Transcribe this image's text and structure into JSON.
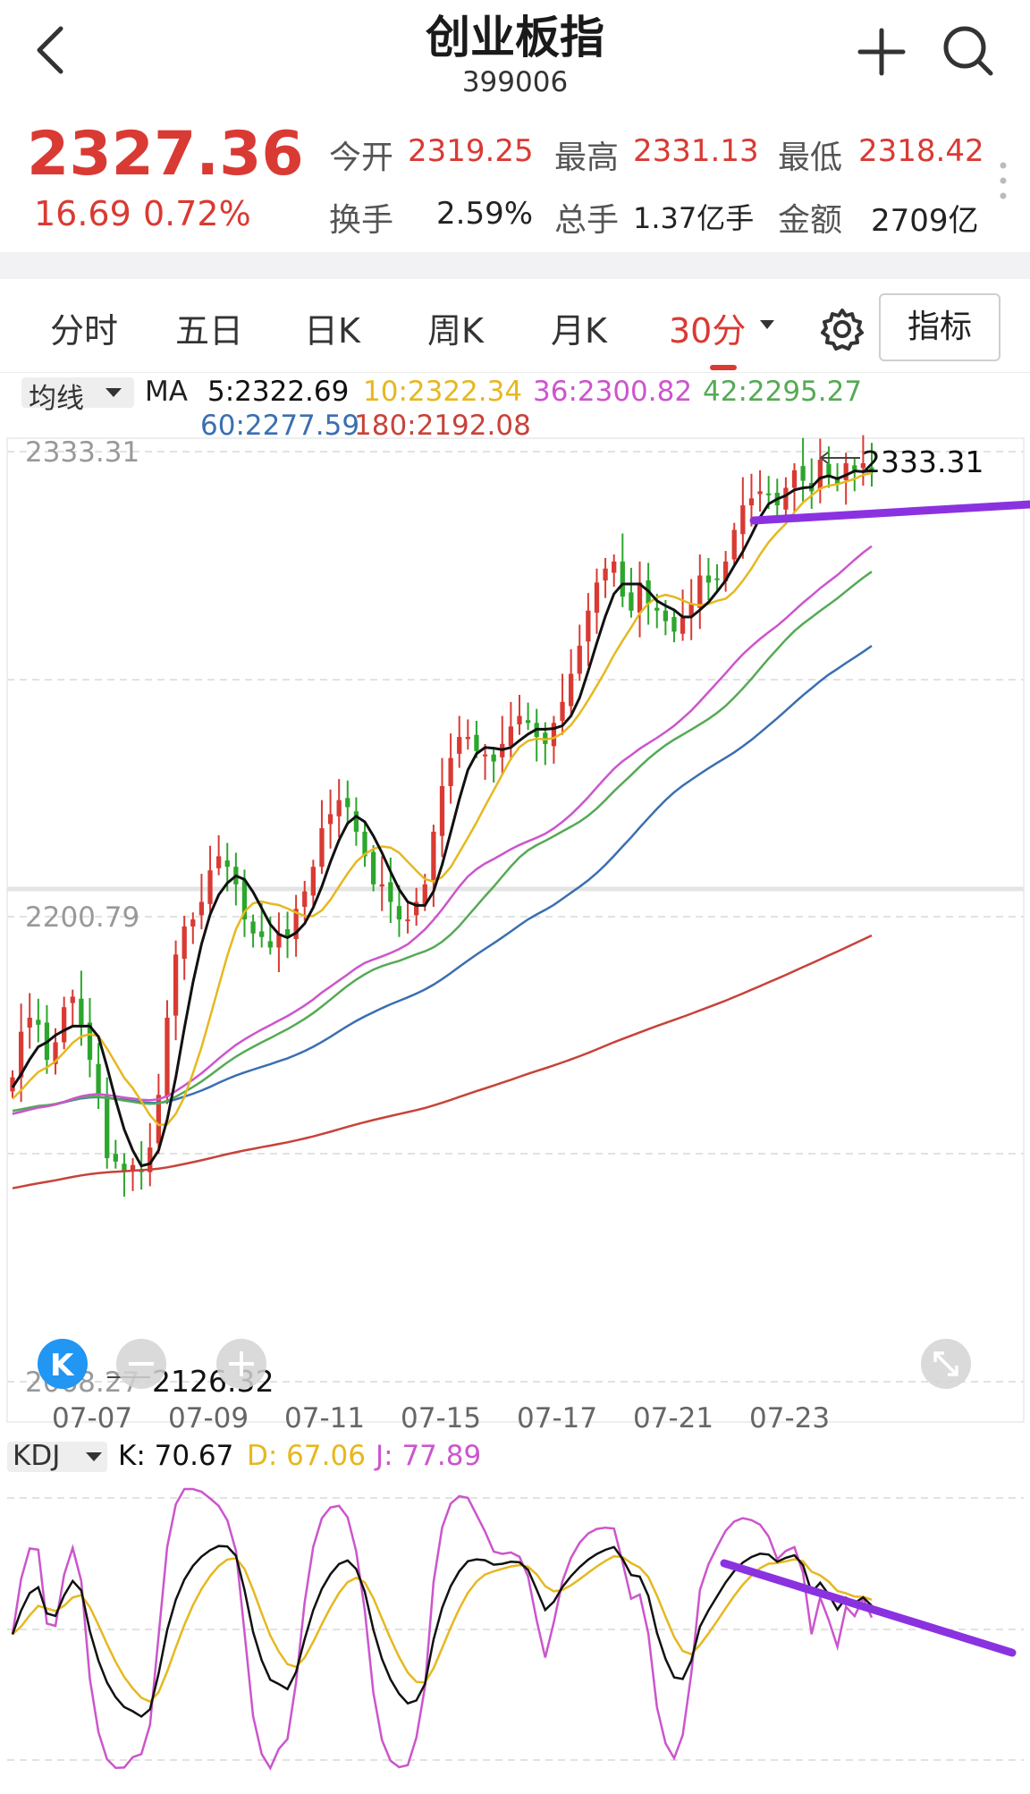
{
  "header": {
    "title": "创业板指",
    "code": "399006"
  },
  "quote": {
    "price": "2327.36",
    "change": "16.69",
    "change_pct": "0.72%",
    "open_label": "今开",
    "open": "2319.25",
    "high_label": "最高",
    "high": "2331.13",
    "low_label": "最低",
    "low": "2318.42",
    "turnover_label": "换手",
    "turnover": "2.59%",
    "volume_label": "总手",
    "volume": "1.37亿手",
    "amount_label": "金额",
    "amount": "2709亿"
  },
  "tabs": {
    "items": [
      "分时",
      "五日",
      "日K",
      "周K",
      "月K",
      "30分"
    ],
    "active": "30分",
    "indicator_button": "指标"
  },
  "ma_legend": {
    "selector": "均线",
    "prefix": "MA",
    "ma5": "5:2322.69",
    "ma10": "10:2322.34",
    "ma36": "36:2300.82",
    "ma42": "42:2295.27",
    "ma60": "60:2277.59",
    "ma180": "180:2192.08"
  },
  "colors": {
    "up": "#d93a33",
    "down": "#2ca62c",
    "ma5": "#111111",
    "ma10": "#e6b820",
    "ma36": "#cc55cc",
    "ma42": "#55aa55",
    "ma60": "#3a6fb0",
    "ma180": "#c8423a",
    "trendline": "#8b32e0"
  },
  "price_axis": {
    "top": "2333.31",
    "mid": "2200.79",
    "bottom": "2068.27"
  },
  "markers": {
    "high": "2333.31",
    "low": "2126.32"
  },
  "x_axis": {
    "dates": [
      "07-07",
      "07-09",
      "07-11",
      "07-15",
      "07-17",
      "07-21",
      "07-23"
    ]
  },
  "kdj_legend": {
    "selector": "KDJ",
    "k": "K: 70.67",
    "d": "D: 67.06",
    "j": "J: 77.89"
  },
  "chart_data": {
    "type": "candlestick",
    "interval": "30分",
    "x_ticks": [
      "07-07",
      "07-09",
      "07-11",
      "07-15",
      "07-17",
      "07-21",
      "07-23"
    ],
    "ylim": [
      2068.27,
      2333.31
    ],
    "grid": true,
    "ma_latest": {
      "MA5": 2322.69,
      "MA10": 2322.34,
      "MA36": 2300.82,
      "MA42": 2295.27,
      "MA60": 2277.59,
      "MA180": 2192.08
    },
    "closes": [
      2155,
      2168,
      2172,
      2170,
      2160,
      2165,
      2175,
      2178,
      2170,
      2160,
      2150,
      2132,
      2131,
      2128,
      2130,
      2128,
      2135,
      2150,
      2172,
      2190,
      2198,
      2200,
      2205,
      2214,
      2218,
      2215,
      2210,
      2200,
      2196,
      2195,
      2192,
      2196,
      2195,
      2203,
      2208,
      2215,
      2226,
      2230,
      2234,
      2232,
      2225,
      2218,
      2210,
      2210,
      2205,
      2200,
      2200,
      2205,
      2210,
      2225,
      2238,
      2246,
      2252,
      2252,
      2248,
      2247,
      2245,
      2250,
      2255,
      2258,
      2256,
      2252,
      2250,
      2256,
      2262,
      2270,
      2278,
      2288,
      2296,
      2300,
      2302,
      2292,
      2288,
      2296,
      2290,
      2288,
      2285,
      2282,
      2286,
      2290,
      2298,
      2296,
      2297,
      2302,
      2311,
      2318,
      2320,
      2322,
      2321,
      2318,
      2323,
      2328,
      2325,
      2322,
      2331,
      2326,
      2324,
      2330,
      2328,
      2330,
      2327.36
    ],
    "kdj_latest": {
      "K": 70.67,
      "D": 67.06,
      "J": 77.89
    }
  }
}
